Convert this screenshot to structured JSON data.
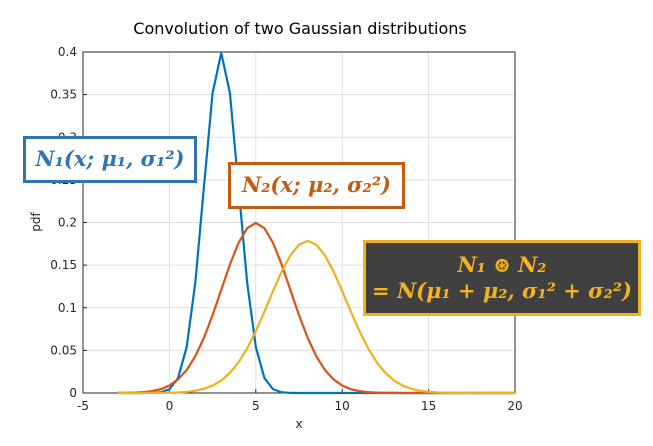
{
  "chart_data": {
    "type": "line",
    "title": "Convolution of two Gaussian distributions",
    "xlabel": "x",
    "ylabel": "pdf",
    "x": [
      -3,
      -2.5,
      -2,
      -1.5,
      -1,
      -0.5,
      0,
      0.5,
      1,
      1.5,
      2,
      2.5,
      3,
      3.5,
      4,
      4.5,
      5,
      5.5,
      6,
      6.5,
      7,
      7.5,
      8,
      8.5,
      9,
      9.5,
      10,
      10.5,
      11,
      11.5,
      12,
      12.5,
      13,
      13.5,
      14,
      14.5,
      15,
      15.5,
      16,
      16.5,
      17,
      17.5,
      18,
      18.5,
      19,
      19.5,
      20
    ],
    "series": [
      {
        "color": "#0072bd",
        "values": [
          0,
          0,
          0,
          0,
          0.0001,
          0.0009,
          0.0044,
          0.0175,
          0.054,
          0.1295,
          0.242,
          0.3521,
          0.3989,
          0.3521,
          0.242,
          0.1295,
          0.054,
          0.0175,
          0.0044,
          0.0009,
          0.0001,
          0,
          0,
          0,
          0,
          0,
          0,
          0,
          0,
          0,
          0,
          0,
          0,
          0,
          0,
          0,
          0,
          0,
          0,
          0,
          0,
          0,
          0,
          0,
          0,
          0,
          0
        ]
      },
      {
        "color": "#d95319",
        "values": [
          0.0001,
          0.0002,
          0.0004,
          0.001,
          0.0022,
          0.0045,
          0.0088,
          0.0159,
          0.027,
          0.0431,
          0.0648,
          0.0913,
          0.121,
          0.1506,
          0.176,
          0.1933,
          0.1995,
          0.1933,
          0.176,
          0.1506,
          0.121,
          0.0913,
          0.0648,
          0.0431,
          0.027,
          0.0159,
          0.0088,
          0.0045,
          0.0022,
          0.001,
          0.0004,
          0.0002,
          0.0001,
          0,
          0,
          0,
          0,
          0,
          0,
          0,
          0,
          0,
          0,
          0,
          0,
          0,
          0
        ]
      },
      {
        "color": "#edb120",
        "values": [
          0,
          0,
          0,
          0,
          0.0001,
          0.0001,
          0.0003,
          0.0006,
          0.0013,
          0.0026,
          0.0049,
          0.0087,
          0.0146,
          0.0236,
          0.036,
          0.0524,
          0.0725,
          0.0955,
          0.1196,
          0.1425,
          0.1614,
          0.174,
          0.1784,
          0.174,
          0.1614,
          0.1425,
          0.1196,
          0.0955,
          0.0725,
          0.0524,
          0.036,
          0.0236,
          0.0146,
          0.0087,
          0.0049,
          0.0026,
          0.0013,
          0.0006,
          0.0003,
          0.0001,
          0.0001,
          0,
          0,
          0,
          0,
          0,
          0
        ]
      }
    ],
    "xlim": [
      -5,
      20
    ],
    "xticks": [
      -5,
      0,
      5,
      10,
      15,
      20
    ],
    "ylim": [
      0,
      0.4
    ],
    "yticks": [
      0,
      0.05,
      0.1,
      0.15,
      0.2,
      0.25,
      0.3,
      0.35,
      0.4
    ],
    "grid": true,
    "annotations": [
      {
        "color": "#2e75b6",
        "lines": [
          "N₁(x; μ₁, σ₁²)"
        ]
      },
      {
        "color": "#c55a11",
        "lines": [
          "N₂(x; μ₂, σ₂²)"
        ]
      },
      {
        "color": "#f4b21c",
        "lines": [
          "N₁ ⊛ N₂",
          "= N(μ₁ + μ₂, σ₁² + σ₂²)"
        ]
      }
    ]
  }
}
